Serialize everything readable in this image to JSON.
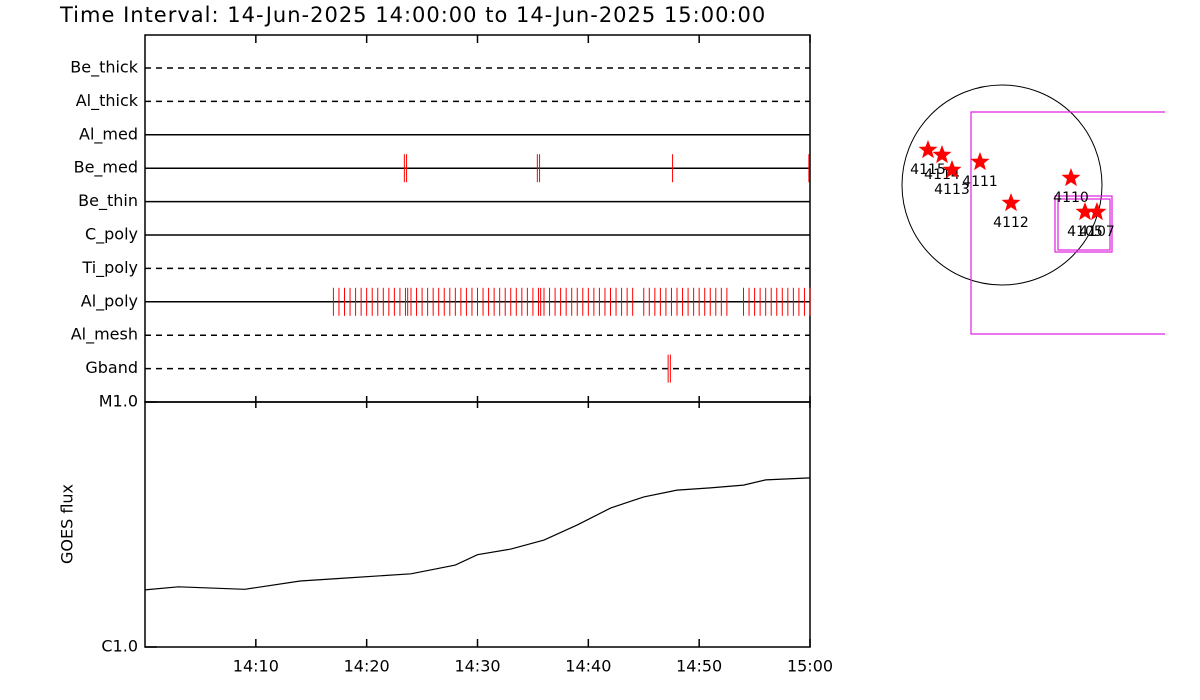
{
  "chart_data": [
    {
      "type": "timeline",
      "title": "Time Interval: 14-Jun-2025 14:00:00 to 14-Jun-2025 15:00:00",
      "xlim": [
        0,
        60
      ],
      "color": "#ff0000",
      "rows": [
        {
          "name": "Be_thick",
          "style": "dashed",
          "times": []
        },
        {
          "name": "Al_thick",
          "style": "dashed",
          "times": []
        },
        {
          "name": "Al_med",
          "style": "solid",
          "times": []
        },
        {
          "name": "Be_med",
          "style": "solid",
          "times": [
            23.4,
            23.6,
            35.4,
            35.6,
            47.6,
            59.9
          ]
        },
        {
          "name": "Be_thin",
          "style": "solid",
          "times": []
        },
        {
          "name": "C_poly",
          "style": "solid",
          "times": []
        },
        {
          "name": "Ti_poly",
          "style": "dashed",
          "times": []
        },
        {
          "name": "Al_poly",
          "style": "solid",
          "times": [
            17,
            17.5,
            18,
            18.5,
            19,
            19.5,
            20,
            20.5,
            21,
            21.5,
            22,
            22.5,
            23,
            23.5,
            23.7,
            24,
            24.5,
            25,
            25.5,
            26,
            26.5,
            27,
            27.5,
            28,
            28.5,
            29,
            29.5,
            30,
            30.5,
            31,
            31.5,
            32,
            32.5,
            33,
            33.5,
            34,
            34.5,
            35,
            35.5,
            35.7,
            36,
            36.5,
            37,
            37.5,
            38,
            38.5,
            39,
            39.5,
            40,
            40.5,
            41,
            41.5,
            42,
            42.5,
            43,
            43.5,
            44,
            45,
            45.5,
            46,
            46.5,
            47,
            47.5,
            48,
            48.5,
            49,
            49.5,
            50,
            50.5,
            51,
            51.5,
            52,
            52.5,
            54,
            54.5,
            55,
            55.5,
            56,
            56.5,
            57,
            57.5,
            58,
            58.5,
            59,
            59.5,
            60
          ]
        },
        {
          "name": "Al_mesh",
          "style": "dashed",
          "times": []
        },
        {
          "name": "Gband",
          "style": "dashed",
          "times": [
            47.2,
            47.4
          ]
        }
      ]
    },
    {
      "type": "line",
      "ylabel": "GOES flux",
      "log": true,
      "xlim": [
        0,
        60
      ],
      "xticks": [
        {
          "value": 10,
          "label": "14:10"
        },
        {
          "value": 20,
          "label": "14:20"
        },
        {
          "value": 30,
          "label": "14:30"
        },
        {
          "value": 40,
          "label": "14:40"
        },
        {
          "value": 50,
          "label": "14:50"
        },
        {
          "value": 60,
          "label": "15:00"
        }
      ],
      "ylim": [
        1e-06,
        1e-05
      ],
      "yticks": [
        {
          "value": 1e-06,
          "label": "C1.0"
        },
        {
          "value": 1e-05,
          "label": "M1.0"
        }
      ],
      "color": "#000000",
      "x": [
        0,
        3,
        9,
        14,
        18,
        24,
        28,
        30,
        33,
        36,
        39,
        42,
        45,
        48,
        51,
        54,
        56,
        60
      ],
      "values": [
        1.71e-06,
        1.76e-06,
        1.72e-06,
        1.86e-06,
        1.91e-06,
        1.99e-06,
        2.16e-06,
        2.38e-06,
        2.51e-06,
        2.73e-06,
        3.15e-06,
        3.69e-06,
        4.1e-06,
        4.37e-06,
        4.46e-06,
        4.58e-06,
        4.81e-06,
        4.9e-06
      ]
    }
  ],
  "map": {
    "regions": [
      "4115",
      "4114",
      "4113",
      "4111",
      "4112",
      "4110",
      "4105",
      "4107"
    ]
  }
}
